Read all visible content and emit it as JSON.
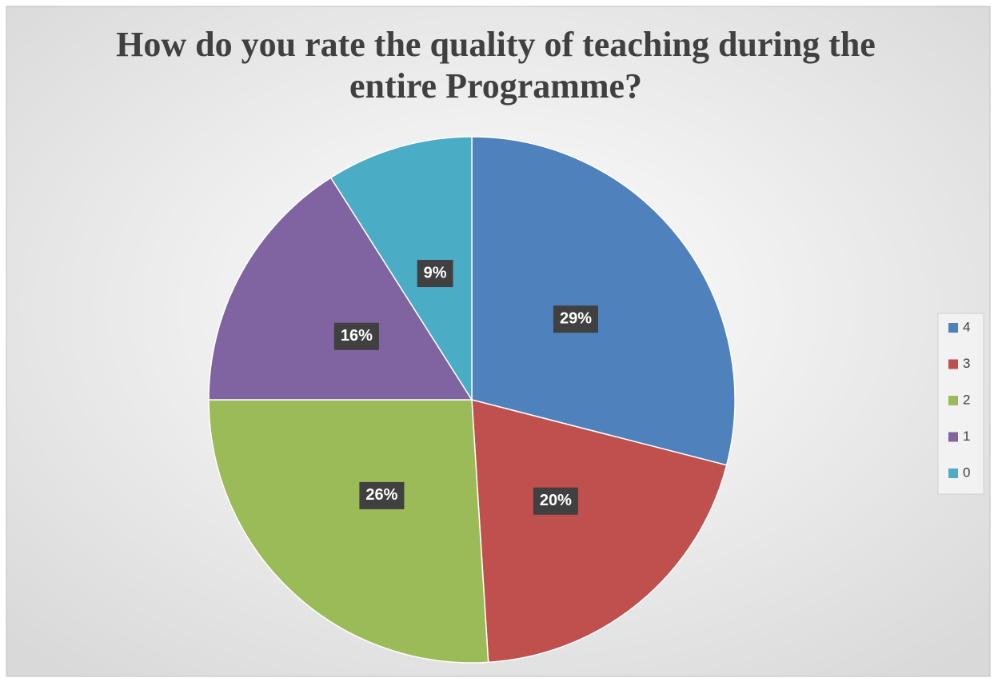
{
  "chart_data": {
    "type": "pie",
    "title": "How do you rate the quality of teaching during the entire Programme?",
    "categories": [
      "4",
      "3",
      "2",
      "1",
      "0"
    ],
    "values": [
      29,
      20,
      26,
      16,
      9
    ],
    "value_labels": [
      "29%",
      "20%",
      "26%",
      "16%",
      "9%"
    ],
    "colors": [
      "#4f81bd",
      "#c0504d",
      "#9bbb59",
      "#8064a2",
      "#4bacc6"
    ],
    "legend": "right"
  }
}
